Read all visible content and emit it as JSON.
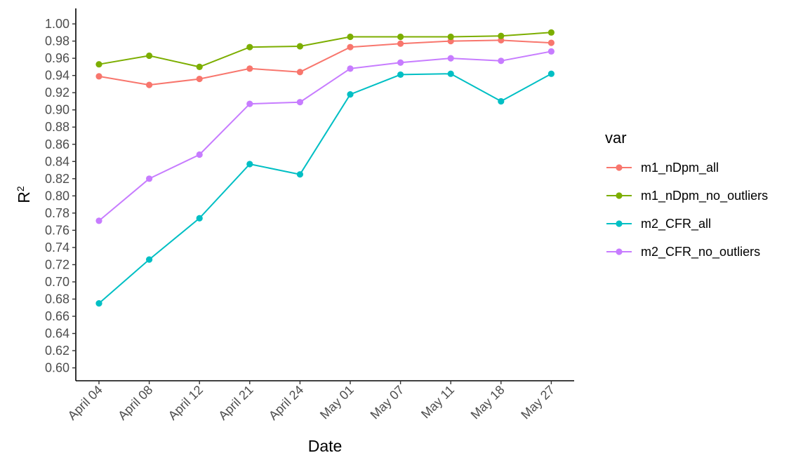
{
  "chart_data": {
    "type": "line",
    "x": [
      "April 04",
      "April 08",
      "April 12",
      "April 21",
      "April 24",
      "May 01",
      "May 07",
      "May 11",
      "May 18",
      "May 27"
    ],
    "xlabel": "Date",
    "ylabel": "R",
    "ylabel_superscript": "2",
    "ylim": [
      0.585,
      1.018
    ],
    "yticks": [
      "0.60",
      "0.62",
      "0.64",
      "0.66",
      "0.68",
      "0.70",
      "0.72",
      "0.74",
      "0.76",
      "0.78",
      "0.80",
      "0.82",
      "0.84",
      "0.86",
      "0.88",
      "0.90",
      "0.92",
      "0.94",
      "0.96",
      "0.98",
      "1.00"
    ],
    "grid": false,
    "legend": {
      "title": "var",
      "position": "right"
    },
    "series": [
      {
        "name": "m1_nDpm_all",
        "color": "#F8766D",
        "values": [
          0.939,
          0.929,
          0.936,
          0.948,
          0.944,
          0.973,
          0.977,
          0.98,
          0.981,
          0.978
        ]
      },
      {
        "name": "m1_nDpm_no_outliers",
        "color": "#7CAE00",
        "values": [
          0.953,
          0.963,
          0.95,
          0.973,
          0.974,
          0.985,
          0.985,
          0.985,
          0.986,
          0.99
        ]
      },
      {
        "name": "m2_CFR_all",
        "color": "#00BFC4",
        "values": [
          0.675,
          0.726,
          0.774,
          0.837,
          0.825,
          0.918,
          0.941,
          0.942,
          0.91,
          0.942
        ]
      },
      {
        "name": "m2_CFR_no_outliers",
        "color": "#C77CFF",
        "values": [
          0.771,
          0.82,
          0.848,
          0.907,
          0.909,
          0.948,
          0.955,
          0.96,
          0.957,
          0.968
        ]
      }
    ]
  }
}
